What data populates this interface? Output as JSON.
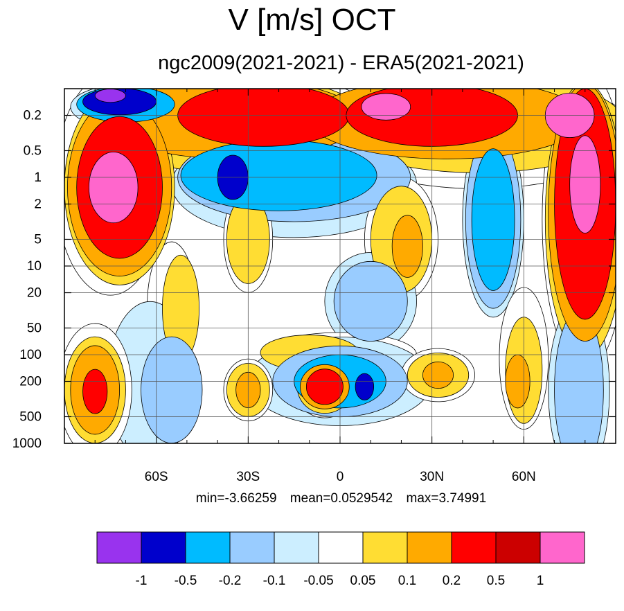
{
  "chart_data": {
    "type": "heatmap",
    "title": "V [m/s] OCT",
    "subtitle": "ngc2009(2021-2021) - ERA5(2021-2021)",
    "x_ticks": [
      "60S",
      "30S",
      "0",
      "30N",
      "60N"
    ],
    "x_tick_values": [
      -60,
      -30,
      0,
      30,
      60
    ],
    "xlim": [
      -90,
      90
    ],
    "y_ticks": [
      "0.2",
      "0.5",
      "1",
      "2",
      "5",
      "10",
      "20",
      "50",
      "100",
      "200",
      "500",
      "1000"
    ],
    "y_tick_values": [
      0.2,
      0.5,
      1,
      2,
      5,
      10,
      20,
      50,
      100,
      200,
      500,
      1000
    ],
    "ylim": [
      0.1,
      1000
    ],
    "y_scale": "log",
    "y_reversed": true,
    "grid": true,
    "stats": {
      "min": "min=-3.66259",
      "mean": "mean=0.0529542",
      "max": "max=3.74991"
    },
    "colorbar": {
      "labels": [
        "-1",
        "-0.5",
        "-0.2",
        "-0.1",
        "-0.05",
        "0.05",
        "0.1",
        "0.2",
        "0.5",
        "1"
      ],
      "levels": [
        -1,
        -0.5,
        -0.2,
        -0.1,
        -0.05,
        0.05,
        0.1,
        0.2,
        0.5,
        1
      ],
      "colors": [
        "#9933ee",
        "#0000cc",
        "#00bbff",
        "#99ccff",
        "#cceeff",
        "#ffffff",
        "#ffdd33",
        "#ffaa00",
        "#ff0000",
        "#cc0000",
        "#ff66cc"
      ]
    },
    "regions": [
      {
        "level": 0.05,
        "lat": -35,
        "p": 0.3,
        "rx": 50,
        "ry": 1.4
      },
      {
        "level": 0.1,
        "lat": -35,
        "p": 0.25,
        "rx": 45,
        "ry": 1.1
      },
      {
        "level": 0.2,
        "lat": -35,
        "p": 0.22,
        "rx": 42,
        "ry": 0.9
      },
      {
        "level": 0.5,
        "lat": -25,
        "p": 0.2,
        "rx": 28,
        "ry": 0.7
      },
      {
        "level": 0.05,
        "lat": 45,
        "p": 0.3,
        "rx": 50,
        "ry": 1.3
      },
      {
        "level": 0.1,
        "lat": 45,
        "p": 0.25,
        "rx": 48,
        "ry": 1.1
      },
      {
        "level": 0.2,
        "lat": 35,
        "p": 0.22,
        "rx": 45,
        "ry": 0.9
      },
      {
        "level": 0.5,
        "lat": 30,
        "p": 0.2,
        "rx": 28,
        "ry": 0.7
      },
      {
        "level": 1,
        "lat": 15,
        "p": 0.16,
        "rx": 8,
        "ry": 0.3
      },
      {
        "level": 0.05,
        "lat": 80,
        "p": 3,
        "rx": 14,
        "ry": 3.4
      },
      {
        "level": 0.1,
        "lat": 80,
        "p": 3,
        "rx": 13,
        "ry": 3.1
      },
      {
        "level": 0.2,
        "lat": 80,
        "p": 2.5,
        "rx": 12,
        "ry": 2.9
      },
      {
        "level": 0.5,
        "lat": 80,
        "p": 2,
        "rx": 10,
        "ry": 2.6
      },
      {
        "level": 1,
        "lat": 80,
        "p": 1.2,
        "rx": 5,
        "ry": 1.1
      },
      {
        "level": 1,
        "lat": 75,
        "p": 0.2,
        "rx": 8,
        "ry": 0.5
      },
      {
        "level": 0.05,
        "lat": -75,
        "p": 1.2,
        "rx": 18,
        "ry": 2.5
      },
      {
        "level": 0.1,
        "lat": -72,
        "p": 1.3,
        "rx": 18,
        "ry": 2.2
      },
      {
        "level": 0.2,
        "lat": -72,
        "p": 1.3,
        "rx": 17,
        "ry": 2.0
      },
      {
        "level": 0.5,
        "lat": -72,
        "p": 1.3,
        "rx": 14,
        "ry": 1.6
      },
      {
        "level": 1,
        "lat": -74,
        "p": 1.3,
        "rx": 8,
        "ry": 0.8
      },
      {
        "level": -0.05,
        "lat": -70,
        "p": 0.16,
        "rx": 18,
        "ry": 0.5
      },
      {
        "level": -0.2,
        "lat": -70,
        "p": 0.15,
        "rx": 16,
        "ry": 0.4
      },
      {
        "level": -0.5,
        "lat": -72,
        "p": 0.14,
        "rx": 12,
        "ry": 0.3
      },
      {
        "level": -1,
        "lat": -75,
        "p": 0.12,
        "rx": 5,
        "ry": 0.15
      },
      {
        "level": -0.05,
        "lat": -15,
        "p": 1.2,
        "rx": 40,
        "ry": 1.2
      },
      {
        "level": -0.1,
        "lat": -15,
        "p": 1.0,
        "rx": 38,
        "ry": 1.0
      },
      {
        "level": -0.2,
        "lat": -20,
        "p": 0.95,
        "rx": 32,
        "ry": 0.8
      },
      {
        "level": -0.5,
        "lat": -35,
        "p": 1.0,
        "rx": 5,
        "ry": 0.5
      },
      {
        "level": -0.05,
        "lat": 50,
        "p": 3,
        "rx": 10,
        "ry": 2.2
      },
      {
        "level": -0.1,
        "lat": 50,
        "p": 3,
        "rx": 9,
        "ry": 2.0
      },
      {
        "level": -0.2,
        "lat": 50,
        "p": 3,
        "rx": 7,
        "ry": 1.6
      },
      {
        "level": 0.05,
        "lat": 20,
        "p": 5,
        "rx": 12,
        "ry": 1.4
      },
      {
        "level": 0.1,
        "lat": 20,
        "p": 5,
        "rx": 10,
        "ry": 1.2
      },
      {
        "level": 0.2,
        "lat": 22,
        "p": 6,
        "rx": 5,
        "ry": 0.7
      },
      {
        "level": 0.05,
        "lat": -30,
        "p": 5,
        "rx": 8,
        "ry": 1.2
      },
      {
        "level": 0.1,
        "lat": -30,
        "p": 5,
        "rx": 7,
        "ry": 1.0
      },
      {
        "level": -0.05,
        "lat": 10,
        "p": 25,
        "rx": 15,
        "ry": 1.1
      },
      {
        "level": -0.1,
        "lat": 10,
        "p": 25,
        "rx": 12,
        "ry": 0.9
      },
      {
        "level": 0.05,
        "lat": -55,
        "p": 30,
        "rx": 8,
        "ry": 1.5
      },
      {
        "level": 0.1,
        "lat": -52,
        "p": 30,
        "rx": 6,
        "ry": 1.2
      },
      {
        "level": 0.05,
        "lat": 0,
        "p": 100,
        "rx": 25,
        "ry": 0.5
      },
      {
        "level": 0.1,
        "lat": -10,
        "p": 95,
        "rx": 16,
        "ry": 0.4
      },
      {
        "level": 0.05,
        "lat": 60,
        "p": 110,
        "rx": 8,
        "ry": 1.6
      },
      {
        "level": 0.1,
        "lat": 60,
        "p": 150,
        "rx": 6,
        "ry": 1.2
      },
      {
        "level": 0.2,
        "lat": 58,
        "p": 200,
        "rx": 4,
        "ry": 0.6
      },
      {
        "level": -0.05,
        "lat": 78,
        "p": 250,
        "rx": 10,
        "ry": 2.0
      },
      {
        "level": -0.1,
        "lat": 78,
        "p": 250,
        "rx": 8,
        "ry": 1.8
      },
      {
        "level": -0.05,
        "lat": -62,
        "p": 200,
        "rx": 14,
        "ry": 1.8
      },
      {
        "level": -0.1,
        "lat": -55,
        "p": 250,
        "rx": 10,
        "ry": 1.2
      },
      {
        "level": 0.05,
        "lat": -80,
        "p": 250,
        "rx": 12,
        "ry": 1.5
      },
      {
        "level": 0.1,
        "lat": -80,
        "p": 250,
        "rx": 10,
        "ry": 1.2
      },
      {
        "level": 0.2,
        "lat": -80,
        "p": 250,
        "rx": 8,
        "ry": 1.0
      },
      {
        "level": 0.5,
        "lat": -80,
        "p": 260,
        "rx": 4,
        "ry": 0.5
      },
      {
        "level": -0.05,
        "lat": 0,
        "p": 200,
        "rx": 30,
        "ry": 1.0
      },
      {
        "level": -0.1,
        "lat": 0,
        "p": 200,
        "rx": 22,
        "ry": 0.8
      },
      {
        "level": -0.2,
        "lat": 0,
        "p": 200,
        "rx": 15,
        "ry": 0.6
      },
      {
        "level": 0.05,
        "lat": -5,
        "p": 230,
        "rx": 10,
        "ry": 0.7
      },
      {
        "level": 0.1,
        "lat": -5,
        "p": 230,
        "rx": 9,
        "ry": 0.6
      },
      {
        "level": 0.2,
        "lat": -5,
        "p": 230,
        "rx": 8,
        "ry": 0.5
      },
      {
        "level": 0.5,
        "lat": -5,
        "p": 230,
        "rx": 6,
        "ry": 0.4
      },
      {
        "level": -0.5,
        "lat": 8,
        "p": 230,
        "rx": 3,
        "ry": 0.3
      },
      {
        "level": 0.05,
        "lat": -30,
        "p": 250,
        "rx": 8,
        "ry": 0.7
      },
      {
        "level": 0.1,
        "lat": -30,
        "p": 250,
        "rx": 7,
        "ry": 0.6
      },
      {
        "level": 0.2,
        "lat": -30,
        "p": 250,
        "rx": 4,
        "ry": 0.4
      },
      {
        "level": 0.05,
        "lat": 32,
        "p": 170,
        "rx": 12,
        "ry": 0.6
      },
      {
        "level": 0.1,
        "lat": 32,
        "p": 170,
        "rx": 10,
        "ry": 0.5
      },
      {
        "level": 0.2,
        "lat": 32,
        "p": 170,
        "rx": 5,
        "ry": 0.3
      }
    ]
  }
}
